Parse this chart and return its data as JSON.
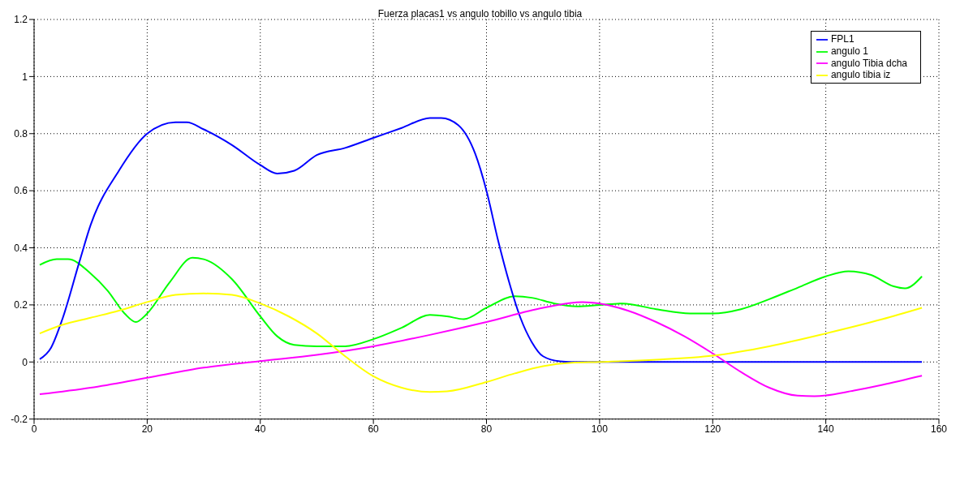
{
  "chart_data": {
    "type": "line",
    "title": "Fuerza placas1 vs angulo tobillo vs angulo tibia",
    "xlim": [
      0,
      160
    ],
    "xticks": [
      0,
      20,
      40,
      60,
      80,
      100,
      120,
      140,
      160
    ],
    "ylim": [
      -0.2,
      1.2
    ],
    "yticks": [
      -0.2,
      0,
      0.2,
      0.4,
      0.6,
      0.8,
      1,
      1.2
    ],
    "grid": true,
    "legend": "top right",
    "marker": "none",
    "line_style": "solid",
    "series": [
      {
        "name": "angulo 1",
        "color": "#00ff00",
        "x": [
          1,
          4,
          6,
          10,
          13,
          16,
          18,
          20,
          24,
          28,
          30,
          35,
          40,
          43,
          46,
          50,
          55,
          60,
          65,
          70,
          73,
          76,
          80,
          85,
          88,
          92,
          96,
          100,
          104,
          110,
          116,
          120,
          125,
          130,
          135,
          140,
          144,
          148,
          152,
          154,
          157
        ],
        "values": [
          0.34,
          0.36,
          0.36,
          0.31,
          0.25,
          0.17,
          0.14,
          0.17,
          0.28,
          0.365,
          0.36,
          0.29,
          0.16,
          0.09,
          0.06,
          0.055,
          0.055,
          0.08,
          0.12,
          0.165,
          0.16,
          0.15,
          0.19,
          0.23,
          0.225,
          0.205,
          0.195,
          0.2,
          0.205,
          0.185,
          0.17,
          0.17,
          0.185,
          0.22,
          0.26,
          0.3,
          0.318,
          0.305,
          0.265,
          0.258,
          0.3
        ]
      },
      {
        "name": "FPL1",
        "color": "#0000ff",
        "x": [
          1,
          3,
          5,
          8,
          10,
          15,
          20,
          25,
          27,
          30,
          35,
          40,
          43,
          46,
          50,
          55,
          60,
          65,
          70,
          72,
          75,
          78,
          80,
          82,
          84,
          86,
          88,
          90,
          93,
          95,
          157
        ],
        "values": [
          0.01,
          0.05,
          0.15,
          0.35,
          0.48,
          0.67,
          0.8,
          0.84,
          0.84,
          0.815,
          0.76,
          0.69,
          0.66,
          0.67,
          0.725,
          0.75,
          0.785,
          0.82,
          0.855,
          0.855,
          0.83,
          0.73,
          0.6,
          0.43,
          0.28,
          0.155,
          0.07,
          0.02,
          0.002,
          0,
          0
        ]
      },
      {
        "name": "angulo Tibia dcha",
        "color": "#ff00ff",
        "x": [
          1,
          10,
          20,
          30,
          40,
          50,
          60,
          70,
          80,
          90,
          97,
          100,
          105,
          110,
          115,
          120,
          125,
          130,
          135,
          138,
          145,
          150,
          157
        ],
        "values": [
          -0.113,
          -0.09,
          -0.055,
          -0.02,
          0.003,
          0.025,
          0.055,
          0.095,
          0.14,
          0.19,
          0.21,
          0.205,
          0.18,
          0.14,
          0.09,
          0.03,
          -0.035,
          -0.09,
          -0.118,
          -0.12,
          -0.1,
          -0.08,
          -0.048
        ]
      },
      {
        "name": "angulo tibia iz",
        "color": "#ffff00",
        "x": [
          1,
          5,
          10,
          15,
          20,
          25,
          30,
          35,
          40,
          45,
          50,
          55,
          60,
          65,
          70,
          73,
          80,
          85,
          90,
          95,
          100,
          110,
          120,
          130,
          140,
          150,
          157
        ],
        "values": [
          0.1,
          0.13,
          0.155,
          0.18,
          0.21,
          0.235,
          0.24,
          0.235,
          0.205,
          0.16,
          0.1,
          0.02,
          -0.05,
          -0.09,
          -0.105,
          -0.103,
          -0.07,
          -0.04,
          -0.015,
          -0.003,
          0,
          0.008,
          0.022,
          0.055,
          0.1,
          0.15,
          0.19
        ]
      }
    ]
  }
}
